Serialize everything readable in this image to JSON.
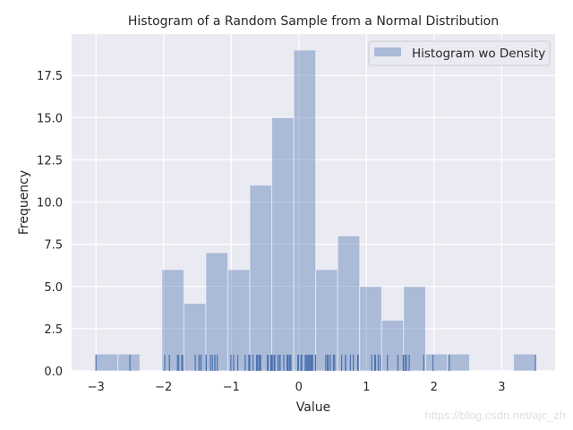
{
  "chart_data": {
    "type": "bar",
    "title": "Histogram of a Random Sample from a Normal Distribution",
    "xlabel": "Value",
    "ylabel": "Frequency",
    "bin_start": -3.0,
    "bin_end": 3.5,
    "counts": [
      1,
      1,
      0,
      6,
      4,
      7,
      6,
      11,
      15,
      19,
      6,
      8,
      5,
      3,
      5,
      1,
      1,
      0,
      0,
      1
    ],
    "xlim": [
      -3.36,
      3.79
    ],
    "ylim": [
      0,
      19.95
    ],
    "xticks": [
      -3,
      -2,
      -1,
      0,
      1,
      2,
      3
    ],
    "xtick_labels": [
      "−3",
      "−2",
      "−1",
      "0",
      "1",
      "2",
      "3"
    ],
    "yticks": [
      0,
      2.5,
      5,
      7.5,
      10,
      12.5,
      15,
      17.5
    ],
    "ytick_labels": [
      "0.0",
      "2.5",
      "5.0",
      "7.5",
      "10.0",
      "12.5",
      "15.0",
      "17.5"
    ],
    "legend": {
      "label": "Histogram wo Density",
      "placement": "top-right"
    },
    "grid": true,
    "rug": true,
    "colors": {
      "bar": "#4c72b0",
      "background": "#eaeaf2",
      "grid": "#ffffff"
    }
  },
  "watermark": "https://blog.csdn.net/ajc_zh"
}
